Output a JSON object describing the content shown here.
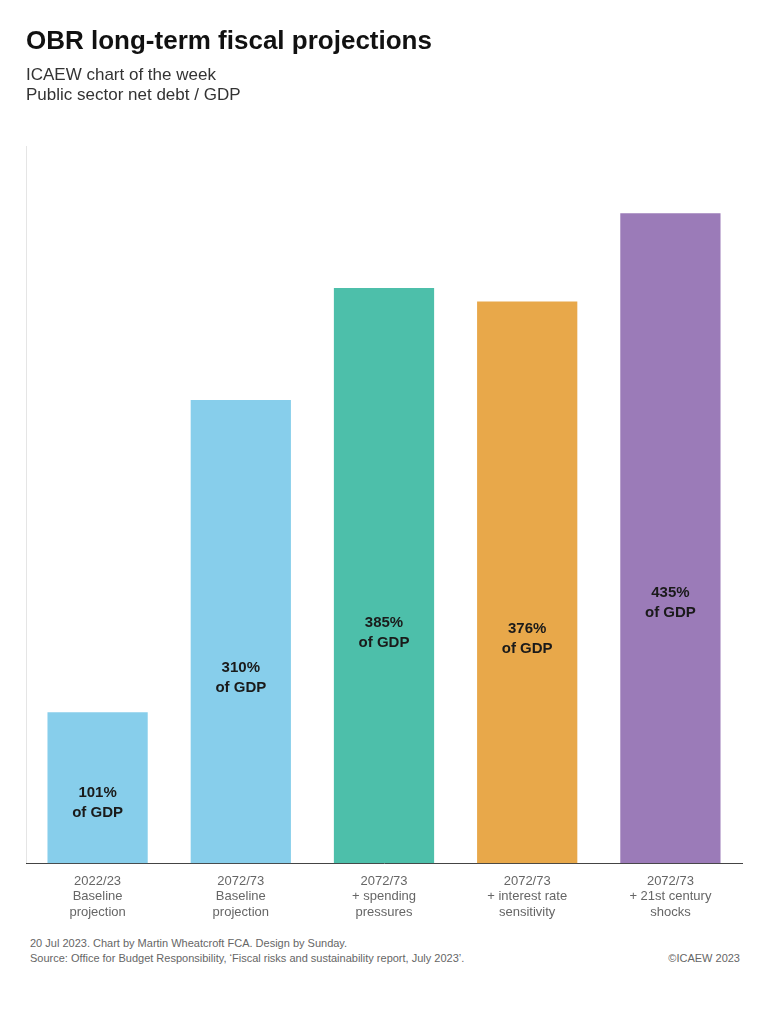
{
  "chart_data": {
    "type": "bar",
    "title": "OBR long-term fiscal projections",
    "subtitle": [
      "ICAEW chart of the week",
      "Public sector net debt / GDP"
    ],
    "categories": [
      "2022/23\nBaseline\nprojection",
      "2072/73\nBaseline\nprojection",
      "2072/73\n+ spending\npressures",
      "2072/73\n+ interest rate\nsensitivity",
      "2072/73\n+ 21st century\nshocks"
    ],
    "values": [
      101,
      310,
      385,
      376,
      435
    ],
    "value_labels": [
      "101%\nof GDP",
      "310%\nof GDP",
      "385%\nof GDP",
      "376%\nof GDP",
      "435%\nof GDP"
    ],
    "data_labels": true,
    "colors": [
      "#87CEEB",
      "#87CEEB",
      "#4DBFAA",
      "#E8A84A",
      "#9B7BB8"
    ],
    "ylim": [
      0,
      480
    ],
    "grid": false,
    "tick_labels": "x",
    "annotations": [
      "20 Jul 2023.   Chart by Martin Wheatcroft FCA. Design by Sunday.",
      "Source: Office for Budget Responsibility, ‘Fiscal risks and sustainability report, July 2023’.",
      "©ICAEW 2023"
    ]
  }
}
